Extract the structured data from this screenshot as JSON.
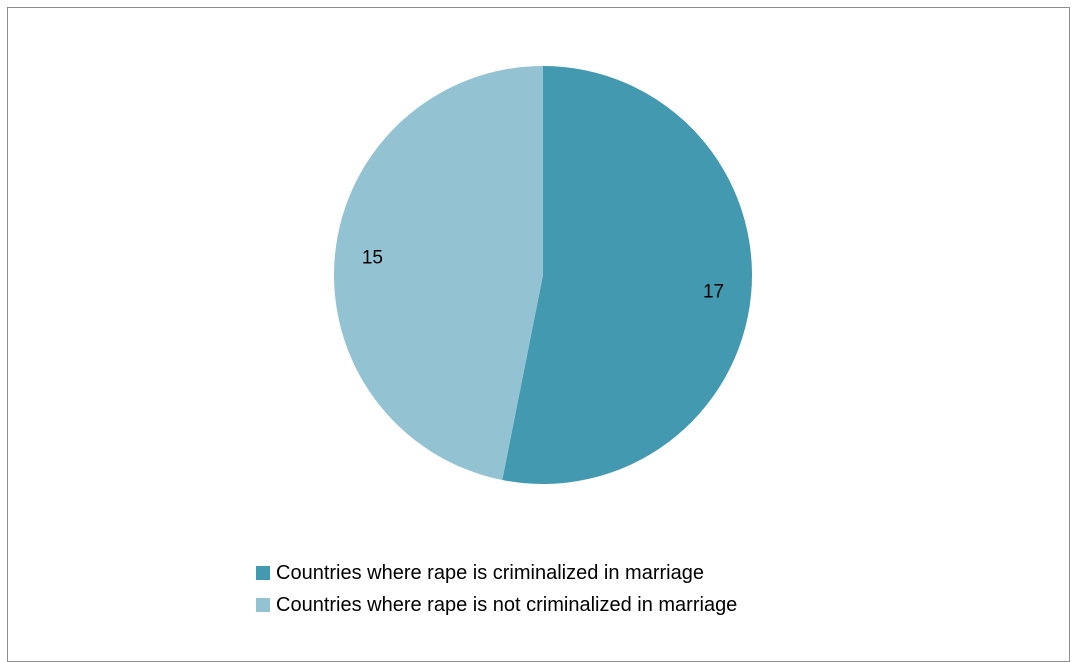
{
  "chart_data": {
    "type": "pie",
    "categories": [
      "Countries where rape is criminalized in marriage",
      "Countries where rape is not criminalized in marriage"
    ],
    "values": [
      17,
      15
    ],
    "colors": [
      "#4299b0",
      "#93c2d3"
    ],
    "data_labels": [
      "17",
      "15"
    ],
    "legend_position": "bottom",
    "start_angle": "12 o'clock",
    "direction": "clockwise"
  }
}
